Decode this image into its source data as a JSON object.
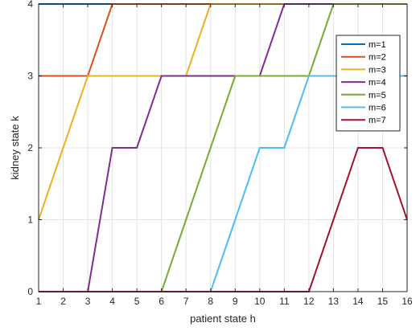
{
  "chart_data": {
    "type": "line",
    "xlabel": "patient state h",
    "ylabel": "kidney state k",
    "xlim": [
      1,
      16
    ],
    "ylim": [
      0,
      4
    ],
    "xticks": [
      1,
      2,
      3,
      4,
      5,
      6,
      7,
      8,
      9,
      10,
      11,
      12,
      13,
      14,
      15,
      16
    ],
    "yticks": [
      0,
      1,
      2,
      3,
      4
    ],
    "grid": true,
    "legend_position": "top-right",
    "series": [
      {
        "name": "m=1",
        "color": "#0072BD",
        "x": [
          1,
          2,
          3,
          4,
          5,
          6,
          7,
          8,
          9,
          10,
          11,
          12,
          13,
          14,
          15,
          16
        ],
        "y": [
          4,
          4,
          4,
          4,
          4,
          4,
          4,
          4,
          4,
          4,
          4,
          4,
          4,
          4,
          4,
          4
        ]
      },
      {
        "name": "m=2",
        "color": "#D95319",
        "x": [
          1,
          2,
          3,
          4,
          5,
          6,
          7,
          8,
          9,
          10,
          11,
          12,
          13,
          14,
          15,
          16
        ],
        "y": [
          3,
          3,
          3,
          4,
          4,
          4,
          4,
          4,
          4,
          4,
          4,
          4,
          4,
          4,
          4,
          4
        ]
      },
      {
        "name": "m=3",
        "color": "#EDB120",
        "x": [
          1,
          2,
          3,
          4,
          5,
          6,
          7,
          8,
          9,
          10,
          11,
          12,
          13,
          14,
          15,
          16
        ],
        "y": [
          1,
          2,
          3,
          3,
          3,
          3,
          3,
          4,
          4,
          4,
          4,
          4,
          4,
          4,
          4,
          4
        ]
      },
      {
        "name": "m=4",
        "color": "#7E2F8E",
        "x": [
          1,
          2,
          3,
          4,
          5,
          6,
          7,
          8,
          9,
          10,
          11,
          12,
          13,
          14,
          15,
          16
        ],
        "y": [
          0,
          0,
          0,
          2,
          2,
          3,
          3,
          3,
          3,
          3,
          4,
          4,
          4,
          4,
          4,
          4
        ]
      },
      {
        "name": "m=5",
        "color": "#77AC30",
        "x": [
          1,
          2,
          3,
          4,
          5,
          6,
          7,
          8,
          9,
          10,
          11,
          12,
          13,
          14,
          15,
          16
        ],
        "y": [
          0,
          0,
          0,
          0,
          0,
          0,
          1,
          2,
          3,
          3,
          3,
          3,
          4,
          4,
          4,
          4
        ]
      },
      {
        "name": "m=6",
        "color": "#4DBEEE",
        "x": [
          1,
          2,
          3,
          4,
          5,
          6,
          7,
          8,
          9,
          10,
          11,
          12,
          13,
          14,
          15,
          16
        ],
        "y": [
          0,
          0,
          0,
          0,
          0,
          0,
          0,
          0,
          1,
          2,
          2,
          3,
          3,
          3,
          3,
          3
        ]
      },
      {
        "name": "m=7",
        "color": "#A2142F",
        "x": [
          1,
          2,
          3,
          4,
          5,
          6,
          7,
          8,
          9,
          10,
          11,
          12,
          13,
          14,
          15,
          16
        ],
        "y": [
          0,
          0,
          0,
          0,
          0,
          0,
          0,
          0,
          0,
          0,
          0,
          0,
          1,
          2,
          2,
          1
        ]
      }
    ]
  }
}
